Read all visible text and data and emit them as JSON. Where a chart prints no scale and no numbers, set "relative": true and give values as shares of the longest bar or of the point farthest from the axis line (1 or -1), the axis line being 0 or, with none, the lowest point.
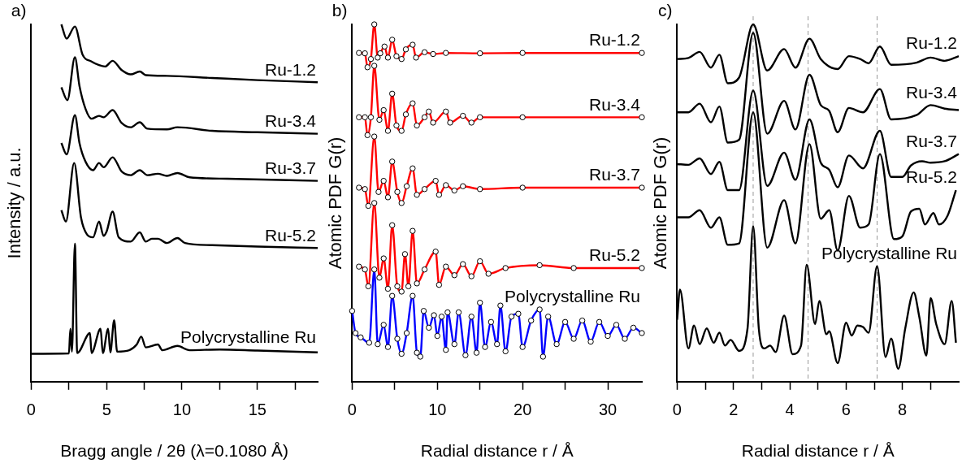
{
  "chart_data": [
    {
      "type": "line",
      "title": "a)",
      "xlabel": "Bragg angle / 2θ (λ=0.1080 Å)",
      "ylabel": "Intensity / a.u.",
      "relative": true,
      "xlim": [
        0,
        19
      ],
      "xticks": [
        0,
        {
          "value": 2.5,
          "label": null
        },
        5,
        {
          "value": 7.5,
          "label": null
        },
        10,
        {
          "value": 12.5,
          "label": null
        },
        15,
        {
          "value": 17.5,
          "label": null
        }
      ],
      "marker": "none",
      "series": [
        {
          "name": "Ru-1.2",
          "color": "#000000",
          "x": [
            2,
            2.35,
            2.9,
            3.4,
            4.0,
            4.5,
            4.9,
            5.4,
            6.0,
            6.6,
            7.2,
            7.6,
            9,
            12,
            15,
            19
          ],
          "values": [
            1.0,
            0.96,
            0.994,
            0.916,
            0.896,
            0.886,
            0.882,
            0.898,
            0.872,
            0.86,
            0.868,
            0.858,
            0.856,
            0.85,
            0.844,
            0.838
          ]
        },
        {
          "name": "Ru-3.4",
          "color": "#000000",
          "x": [
            2,
            2.4,
            2.9,
            3.2,
            3.6,
            4.0,
            4.5,
            4.8,
            5.4,
            6.0,
            6.6,
            7.2,
            7.7,
            9,
            9.7,
            12,
            15,
            19
          ],
          "values": [
            0.824,
            0.788,
            0.908,
            0.828,
            0.764,
            0.736,
            0.744,
            0.74,
            0.76,
            0.724,
            0.712,
            0.726,
            0.708,
            0.706,
            0.712,
            0.702,
            0.698,
            0.694
          ]
        },
        {
          "name": "Ru-3.7",
          "color": "#000000",
          "x": [
            2,
            2.35,
            2.9,
            3.2,
            3.6,
            4.1,
            4.5,
            4.8,
            5.4,
            6.0,
            6.6,
            7.2,
            7.7,
            8.4,
            9,
            9.7,
            10.5,
            13,
            19
          ],
          "values": [
            0.668,
            0.636,
            0.746,
            0.668,
            0.616,
            0.592,
            0.612,
            0.6,
            0.628,
            0.588,
            0.578,
            0.592,
            0.578,
            0.582,
            0.576,
            0.584,
            0.572,
            0.568,
            0.562
          ]
        },
        {
          "name": "Ru-5.2",
          "color": "#000000",
          "x": [
            2,
            2.3,
            2.85,
            3.3,
            3.7,
            4.1,
            4.5,
            4.8,
            5.0,
            5.4,
            5.8,
            6.6,
            7.2,
            7.6,
            8.0,
            8.4,
            9.0,
            9.7,
            10.2,
            12,
            15,
            19
          ],
          "values": [
            0.48,
            0.448,
            0.612,
            0.46,
            0.412,
            0.404,
            0.448,
            0.408,
            0.42,
            0.476,
            0.404,
            0.392,
            0.418,
            0.392,
            0.4,
            0.4,
            0.388,
            0.402,
            0.388,
            0.382,
            0.378,
            0.374
          ]
        },
        {
          "name": "Polycrystalline Ru",
          "color": "#000000",
          "x": [
            0,
            2.5,
            2.6,
            2.7,
            2.9,
            3.05,
            3.9,
            4.0,
            4.6,
            4.75,
            5.1,
            5.25,
            5.5,
            5.7,
            6.5,
            7.0,
            7.3,
            7.6,
            8.4,
            8.7,
            9.7,
            10.5,
            12.5,
            15,
            19
          ],
          "values": [
            0.078,
            0.079,
            0.148,
            0.084,
            0.386,
            0.08,
            0.136,
            0.08,
            0.148,
            0.08,
            0.148,
            0.082,
            0.172,
            0.084,
            0.088,
            0.104,
            0.126,
            0.096,
            0.104,
            0.088,
            0.1,
            0.088,
            0.09,
            0.087,
            0.082
          ]
        }
      ]
    },
    {
      "type": "line",
      "title": "b)",
      "xlabel": "Radial distance r / Å",
      "ylabel": "Atomic PDF G(r)",
      "relative": true,
      "xlim": [
        0,
        34
      ],
      "xticks": [
        0,
        {
          "value": 5,
          "label": null
        },
        10,
        {
          "value": 15,
          "label": null
        },
        20,
        {
          "value": 25,
          "label": null
        },
        30
      ],
      "series": [
        {
          "name": "Ru-1.2",
          "type": "scatter",
          "marker": "circle",
          "color": "#000000",
          "x": [
            0.8,
            1.5,
            1.8,
            2.2,
            2.6,
            3.0,
            3.3,
            3.8,
            4.2,
            4.7,
            5.2,
            5.8,
            6.3,
            7.1,
            7.5,
            8.5,
            9.5,
            11,
            15,
            20,
            34
          ],
          "values": [
            0.92,
            0.919,
            0.88,
            0.903,
            1.0,
            0.907,
            0.919,
            0.938,
            0.907,
            0.957,
            0.911,
            0.903,
            0.93,
            0.943,
            0.907,
            0.922,
            0.917,
            0.92,
            0.919,
            0.92,
            0.92
          ]
        },
        {
          "marker": "none",
          "color": "#ff0000",
          "x": [
            0.8,
            1.5,
            1.8,
            2.2,
            2.6,
            3.0,
            3.3,
            3.8,
            4.2,
            4.7,
            5.2,
            5.8,
            6.3,
            7.1,
            7.5,
            8.5,
            9.5,
            11,
            15,
            20,
            34
          ],
          "values": [
            0.92,
            0.919,
            0.88,
            0.903,
            1.0,
            0.907,
            0.919,
            0.938,
            0.907,
            0.957,
            0.911,
            0.903,
            0.93,
            0.943,
            0.907,
            0.922,
            0.917,
            0.92,
            0.919,
            0.92,
            0.92
          ]
        },
        {
          "name": "Ru-3.4",
          "type": "scatter",
          "marker": "circle",
          "color": "#000000",
          "x": [
            0.8,
            1.5,
            1.8,
            2.2,
            2.6,
            3.2,
            3.7,
            4.2,
            4.7,
            5.2,
            5.8,
            6.3,
            7.1,
            7.6,
            8.5,
            9.0,
            9.5,
            11,
            11.5,
            13,
            14,
            15,
            20,
            34
          ],
          "values": [
            0.74,
            0.74,
            0.69,
            0.74,
            0.884,
            0.733,
            0.76,
            0.702,
            0.806,
            0.717,
            0.702,
            0.748,
            0.779,
            0.717,
            0.74,
            0.756,
            0.725,
            0.756,
            0.725,
            0.744,
            0.725,
            0.74,
            0.74,
            0.74
          ]
        },
        {
          "marker": "none",
          "color": "#ff0000",
          "x": [
            0.8,
            1.5,
            1.8,
            2.2,
            2.6,
            3.2,
            3.7,
            4.2,
            4.7,
            5.2,
            5.8,
            6.3,
            7.1,
            7.6,
            8.5,
            9.0,
            9.5,
            11,
            11.5,
            13,
            14,
            15,
            20,
            34
          ],
          "values": [
            0.74,
            0.74,
            0.69,
            0.74,
            0.884,
            0.733,
            0.76,
            0.702,
            0.806,
            0.717,
            0.702,
            0.748,
            0.779,
            0.717,
            0.74,
            0.756,
            0.725,
            0.756,
            0.725,
            0.744,
            0.725,
            0.74,
            0.74,
            0.74
          ]
        },
        {
          "name": "Ru-3.7",
          "type": "scatter",
          "marker": "circle",
          "color": "#000000",
          "x": [
            0.8,
            1.5,
            1.9,
            2.6,
            3.1,
            3.7,
            4.2,
            4.7,
            5.3,
            5.8,
            6.4,
            7.1,
            7.6,
            8.5,
            9.8,
            10.2,
            11,
            12,
            13,
            15,
            20,
            34
          ],
          "values": [
            0.543,
            0.539,
            0.492,
            0.686,
            0.531,
            0.562,
            0.516,
            0.616,
            0.531,
            0.5,
            0.547,
            0.597,
            0.523,
            0.539,
            0.562,
            0.523,
            0.55,
            0.535,
            0.547,
            0.539,
            0.543,
            0.543
          ]
        },
        {
          "marker": "none",
          "color": "#ff0000",
          "x": [
            0.8,
            1.5,
            1.9,
            2.6,
            3.1,
            3.7,
            4.2,
            4.7,
            5.3,
            5.8,
            6.4,
            7.1,
            7.6,
            8.5,
            9.8,
            10.2,
            11,
            12,
            13,
            15,
            20,
            34
          ],
          "values": [
            0.543,
            0.539,
            0.492,
            0.686,
            0.531,
            0.562,
            0.516,
            0.616,
            0.531,
            0.5,
            0.547,
            0.597,
            0.523,
            0.539,
            0.562,
            0.523,
            0.55,
            0.535,
            0.547,
            0.539,
            0.543,
            0.543
          ]
        },
        {
          "name": "Ru-5.2",
          "type": "scatter",
          "marker": "circle",
          "color": "#000000",
          "x": [
            0.8,
            1.5,
            1.9,
            2.6,
            3.2,
            3.7,
            4.2,
            4.7,
            5.3,
            5.8,
            6.2,
            6.6,
            7.1,
            7.6,
            8.5,
            9.8,
            10.2,
            11,
            12,
            13,
            14,
            15,
            16,
            18,
            22,
            26,
            34
          ],
          "values": [
            0.322,
            0.314,
            0.267,
            0.5,
            0.291,
            0.345,
            0.26,
            0.438,
            0.267,
            0.252,
            0.357,
            0.267,
            0.422,
            0.275,
            0.314,
            0.364,
            0.271,
            0.322,
            0.298,
            0.329,
            0.295,
            0.337,
            0.302,
            0.318,
            0.326,
            0.318,
            0.318
          ]
        },
        {
          "marker": "none",
          "color": "#ff0000",
          "x": [
            0.8,
            1.5,
            1.9,
            2.6,
            3.2,
            3.7,
            4.2,
            4.7,
            5.3,
            5.8,
            6.2,
            6.6,
            7.1,
            7.6,
            8.5,
            9.8,
            10.2,
            11,
            12,
            13,
            14,
            15,
            16,
            18,
            22,
            26,
            34
          ],
          "values": [
            0.322,
            0.314,
            0.267,
            0.5,
            0.291,
            0.345,
            0.26,
            0.438,
            0.267,
            0.252,
            0.357,
            0.267,
            0.422,
            0.275,
            0.314,
            0.364,
            0.271,
            0.322,
            0.298,
            0.329,
            0.295,
            0.337,
            0.302,
            0.318,
            0.326,
            0.318,
            0.318
          ]
        },
        {
          "name": "Polycrystalline Ru",
          "type": "scatter",
          "marker": "circle",
          "color": "#000000",
          "x": [
            0,
            0.4,
            1,
            2,
            2.6,
            3.0,
            3.7,
            4.2,
            4.7,
            5.3,
            5.8,
            6.4,
            7.1,
            7.6,
            8.0,
            8.4,
            9.0,
            9.6,
            10,
            10.5,
            11,
            11.2,
            12,
            12.5,
            13.3,
            14,
            14.6,
            15,
            15.6,
            16.3,
            17,
            17.4,
            18,
            18.7,
            19.5,
            20,
            21,
            22,
            22.4,
            23,
            24,
            25,
            26,
            27,
            28,
            29,
            30,
            31,
            32,
            33,
            34
          ],
          "values": [
            0.198,
            0.136,
            0.124,
            0.109,
            0.314,
            0.105,
            0.159,
            0.097,
            0.24,
            0.12,
            0.078,
            0.136,
            0.24,
            0.081,
            0.07,
            0.198,
            0.151,
            0.186,
            0.128,
            0.182,
            0.089,
            0.194,
            0.105,
            0.194,
            0.074,
            0.182,
            0.081,
            0.221,
            0.097,
            0.167,
            0.105,
            0.213,
            0.085,
            0.182,
            0.19,
            0.097,
            0.171,
            0.202,
            0.07,
            0.182,
            0.105,
            0.167,
            0.12,
            0.171,
            0.112,
            0.167,
            0.128,
            0.159,
            0.12,
            0.151,
            0.136
          ]
        },
        {
          "marker": "none",
          "color": "#0000ff",
          "x": [
            0,
            0.4,
            1,
            2,
            2.6,
            3.0,
            3.7,
            4.2,
            4.7,
            5.3,
            5.8,
            6.4,
            7.1,
            7.6,
            8.0,
            8.4,
            9.0,
            9.6,
            10,
            10.5,
            11,
            11.2,
            12,
            12.5,
            13.3,
            14,
            14.6,
            15,
            15.6,
            16.3,
            17,
            17.4,
            18,
            18.7,
            19.5,
            20,
            21,
            22,
            22.4,
            23,
            24,
            25,
            26,
            27,
            28,
            29,
            30,
            31,
            32,
            33,
            34
          ],
          "values": [
            0.198,
            0.136,
            0.124,
            0.109,
            0.314,
            0.105,
            0.159,
            0.097,
            0.24,
            0.12,
            0.078,
            0.136,
            0.24,
            0.081,
            0.07,
            0.198,
            0.151,
            0.186,
            0.128,
            0.182,
            0.089,
            0.194,
            0.105,
            0.194,
            0.074,
            0.182,
            0.081,
            0.221,
            0.097,
            0.167,
            0.105,
            0.213,
            0.085,
            0.182,
            0.19,
            0.097,
            0.171,
            0.202,
            0.07,
            0.182,
            0.105,
            0.167,
            0.12,
            0.171,
            0.112,
            0.167,
            0.128,
            0.159,
            0.12,
            0.151,
            0.136
          ]
        }
      ]
    },
    {
      "type": "line",
      "title": "c)",
      "xlabel": "Radial distance r / Å",
      "ylabel": "Atomic PDF G(r)",
      "relative": true,
      "xlim": [
        0,
        10
      ],
      "xticks": [
        0,
        {
          "value": 1,
          "label": null
        },
        2,
        {
          "value": 3,
          "label": null
        },
        4,
        {
          "value": 5,
          "label": null
        },
        6,
        {
          "value": 7,
          "label": null
        },
        8,
        {
          "value": 9,
          "label": null
        }
      ],
      "marker": "none",
      "ref_lines": [
        {
          "axis": "x",
          "value": 2.7,
          "color": "#999999",
          "line_style": "dashed"
        },
        {
          "axis": "x",
          "value": 4.65,
          "color": "#999999",
          "line_style": "dashed"
        },
        {
          "axis": "x",
          "value": 7.1,
          "color": "#999999",
          "line_style": "dashed"
        }
      ],
      "series": [
        {
          "name": "Ru-1.2",
          "color": "#000000",
          "x": [
            0,
            0.4,
            0.8,
            1.2,
            1.5,
            1.8,
            2.2,
            2.7,
            3.2,
            3.8,
            4.2,
            4.7,
            5.1,
            5.7,
            6.1,
            6.5,
            6.8,
            7.2,
            7.6,
            8.5,
            9,
            9.5,
            10
          ],
          "values": [
            0.903,
            0.906,
            0.923,
            0.879,
            0.915,
            0.835,
            0.851,
            1.0,
            0.871,
            0.931,
            0.879,
            0.96,
            0.903,
            0.875,
            0.911,
            0.903,
            0.891,
            0.938,
            0.887,
            0.893,
            0.907,
            0.898,
            0.911
          ]
        },
        {
          "name": "Ru-3.4",
          "color": "#000000",
          "x": [
            0,
            0.4,
            0.8,
            1.2,
            1.5,
            1.8,
            2.2,
            2.7,
            3.2,
            3.8,
            4.2,
            4.7,
            5.1,
            5.4,
            5.7,
            6.1,
            6.6,
            7.2,
            7.6,
            8.5,
            9,
            9.5,
            10
          ],
          "values": [
            0.754,
            0.754,
            0.778,
            0.726,
            0.77,
            0.669,
            0.677,
            0.976,
            0.694,
            0.786,
            0.706,
            0.859,
            0.774,
            0.758,
            0.698,
            0.766,
            0.754,
            0.819,
            0.734,
            0.746,
            0.774,
            0.764,
            0.76
          ]
        },
        {
          "name": "Ru-3.7",
          "color": "#000000",
          "x": [
            0,
            0.4,
            0.8,
            1.2,
            1.5,
            1.8,
            2.2,
            2.7,
            3.2,
            3.8,
            4.2,
            4.7,
            5.1,
            5.4,
            5.7,
            6.1,
            6.6,
            7.2,
            7.6,
            8.0,
            8.3,
            8.7,
            9,
            9.5,
            10
          ],
          "values": [
            0.609,
            0.607,
            0.625,
            0.581,
            0.615,
            0.536,
            0.536,
            0.815,
            0.548,
            0.641,
            0.565,
            0.734,
            0.613,
            0.593,
            0.544,
            0.633,
            0.597,
            0.702,
            0.573,
            0.573,
            0.605,
            0.617,
            0.613,
            0.617,
            0.637
          ]
        },
        {
          "name": "Ru-5.2",
          "color": "#000000",
          "x": [
            0,
            0.4,
            0.8,
            1.2,
            1.5,
            1.8,
            2.2,
            2.7,
            3.2,
            3.8,
            4.2,
            4.7,
            5.1,
            5.4,
            5.7,
            6.1,
            6.5,
            6.8,
            7.2,
            7.7,
            8.0,
            8.3,
            8.6,
            8.8,
            9.1,
            9.3,
            9.6,
            9.9
          ],
          "values": [
            0.46,
            0.46,
            0.48,
            0.431,
            0.46,
            0.383,
            0.387,
            0.754,
            0.375,
            0.508,
            0.387,
            0.665,
            0.456,
            0.48,
            0.367,
            0.52,
            0.431,
            0.44,
            0.637,
            0.399,
            0.407,
            0.476,
            0.484,
            0.44,
            0.472,
            0.44,
            0.464,
            0.536
          ]
        },
        {
          "name": "Polycrystalline Ru",
          "color": "#000000",
          "x": [
            0,
            0.1,
            0.4,
            0.6,
            0.8,
            1.05,
            1.3,
            1.5,
            1.7,
            1.9,
            2.2,
            2.5,
            2.7,
            2.9,
            3.1,
            3.3,
            3.5,
            3.8,
            4.1,
            4.4,
            4.6,
            4.9,
            5.05,
            5.3,
            5.4,
            5.7,
            6.0,
            6.2,
            6.4,
            6.6,
            6.8,
            7.1,
            7.4,
            7.6,
            7.85,
            8.1,
            8.4,
            8.6,
            8.85,
            9.0,
            9.2,
            9.5,
            9.75,
            9.9
          ],
          "values": [
            0.173,
            0.258,
            0.093,
            0.157,
            0.105,
            0.149,
            0.109,
            0.137,
            0.101,
            0.117,
            0.086,
            0.149,
            0.435,
            0.149,
            0.093,
            0.101,
            0.083,
            0.185,
            0.077,
            0.101,
            0.327,
            0.161,
            0.226,
            0.133,
            0.141,
            0.052,
            0.165,
            0.129,
            0.157,
            0.153,
            0.137,
            0.323,
            0.069,
            0.121,
            0.036,
            0.149,
            0.25,
            0.181,
            0.073,
            0.234,
            0.161,
            0.105,
            0.226,
            0.109
          ]
        }
      ]
    }
  ]
}
